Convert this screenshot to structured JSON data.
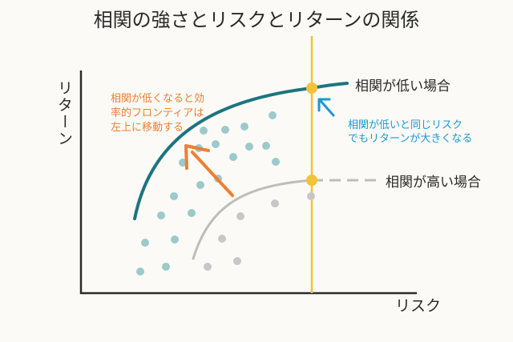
{
  "title": "相関の強さとリスクとリターンの関係",
  "axes": {
    "y_label": "リターン",
    "x_label": "リスク"
  },
  "annotations": {
    "low_corr_label": "相関が低い場合",
    "high_corr_label": "相関が高い場合",
    "frontier_note_lines": [
      "相関が低くなると効",
      "率的フロンティアは",
      "左上に移動する"
    ],
    "same_risk_note_lines": [
      "相関が低いと同じリスク",
      "でもリターンが大きくなる"
    ]
  },
  "colors": {
    "low_curve": "#1d7480",
    "high_curve": "#bdbdbd",
    "risk_line": "#f3c23a",
    "arrow_orange": "#f07e33",
    "arrow_blue": "#1a98d5",
    "teal_dots": "#9ccaca",
    "gray_dots": "#c7c7c7",
    "axis": "#2b2b2b",
    "note_orange": "#f07e33",
    "note_blue": "#1a98d5"
  },
  "icons": {
    "frontier_arrow": "arrow-up-left-icon",
    "callout_arrow": "arrow-up-left-icon"
  }
}
